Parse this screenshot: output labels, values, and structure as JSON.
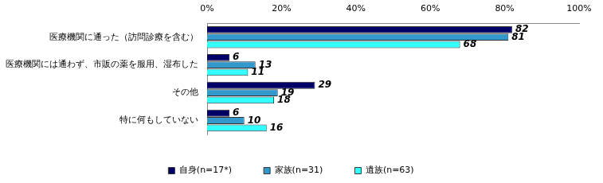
{
  "chart_data": {
    "type": "bar",
    "orientation": "horizontal",
    "categories": [
      "医療機関に通った（訪問診療を含む）",
      "医療機関には通わず、市販の薬を服用、湿布した",
      "その他",
      "特に何もしていない"
    ],
    "series": [
      {
        "name": "自身(n=17*)",
        "color": "#000066",
        "values": [
          82,
          6,
          29,
          6
        ]
      },
      {
        "name": "家族(n=31)",
        "color": "#3399cc",
        "values": [
          81,
          13,
          19,
          10
        ]
      },
      {
        "name": "遺族(n=63)",
        "color": "#33ffff",
        "values": [
          68,
          11,
          18,
          16
        ]
      }
    ],
    "xlim": [
      0,
      100
    ],
    "xticks": [
      {
        "value": 0,
        "label": "0%"
      },
      {
        "value": 20,
        "label": "20%"
      },
      {
        "value": 40,
        "label": "40%"
      },
      {
        "value": 60,
        "label": "60%"
      },
      {
        "value": 80,
        "label": "80%"
      },
      {
        "value": 100,
        "label": "100%"
      }
    ],
    "grid": false,
    "legend": "bottom",
    "data_labels": true
  }
}
